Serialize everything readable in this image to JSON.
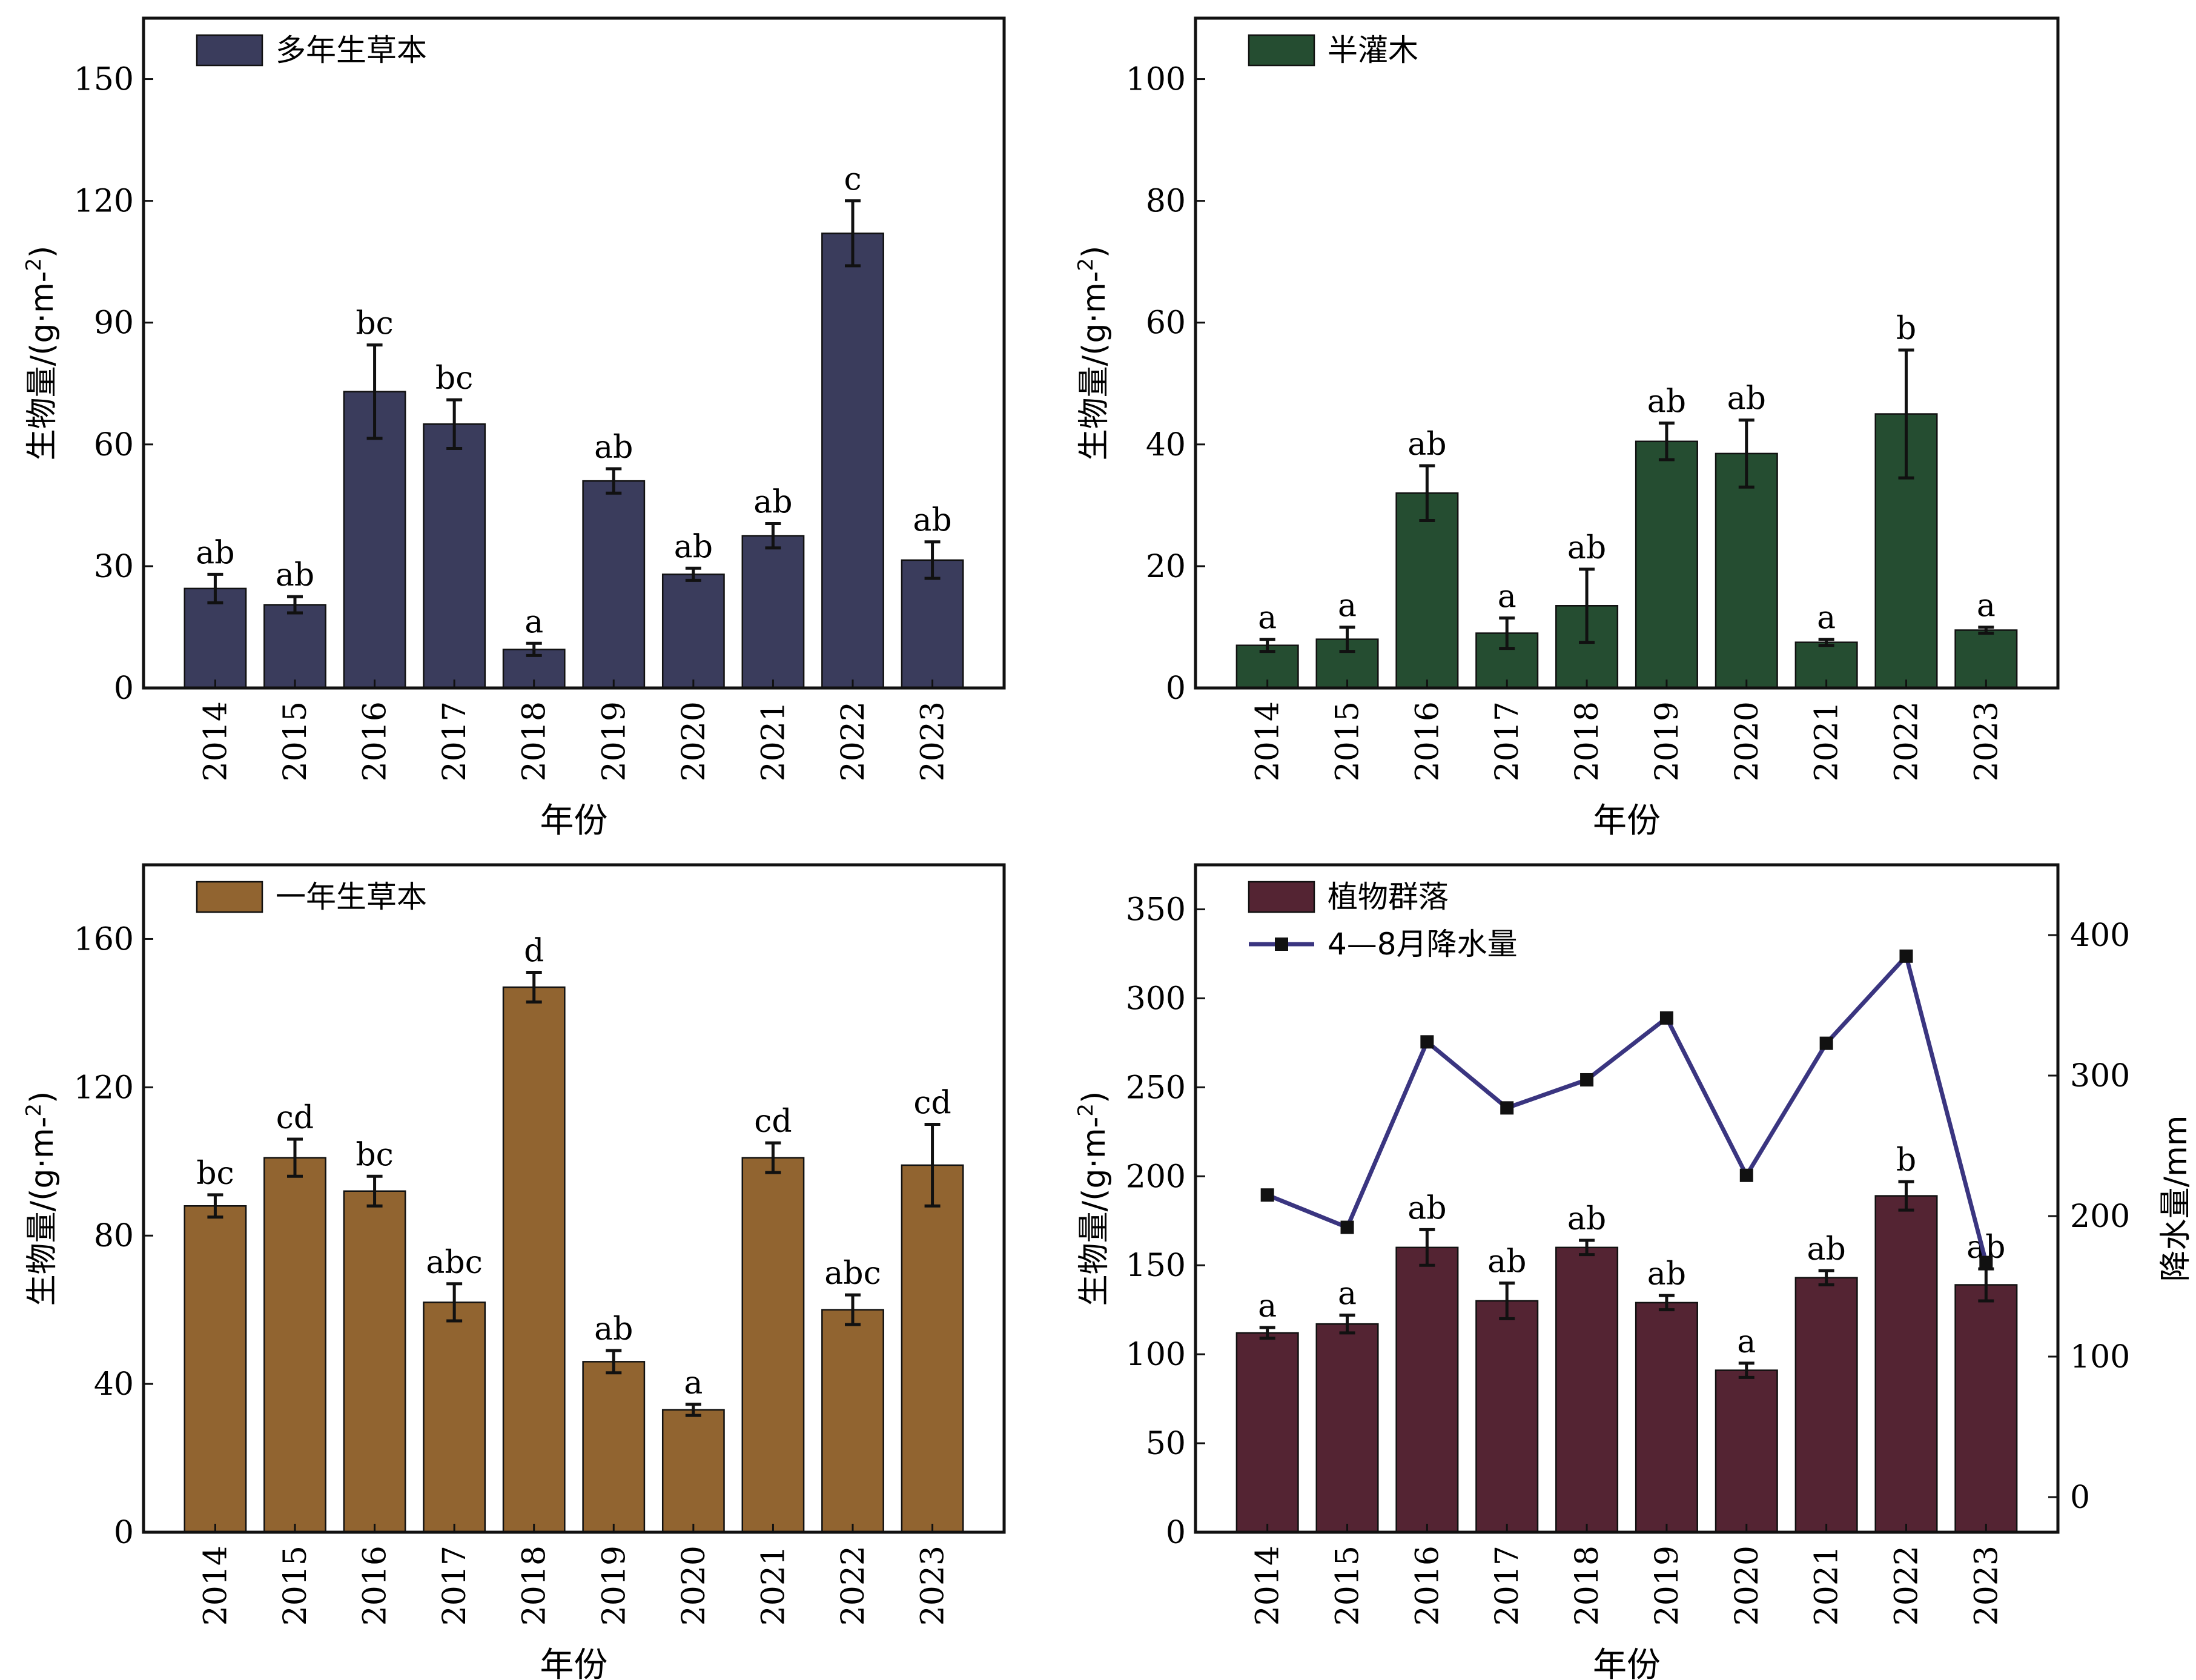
{
  "chart_data": [
    {
      "type": "bar",
      "legend_location": "top-left",
      "categories": [
        "2014",
        "2015",
        "2016",
        "2017",
        "2018",
        "2019",
        "2020",
        "2021",
        "2022",
        "2023"
      ],
      "series": [
        {
          "name": "多年生草本",
          "color": "#3a3c5c",
          "values": [
            24.5,
            20.5,
            73,
            65,
            9.5,
            51,
            28,
            37.5,
            112,
            31.5
          ],
          "errors": [
            3.5,
            2,
            11.5,
            6,
            1.5,
            3,
            1.5,
            3,
            8,
            4.5
          ]
        }
      ],
      "letters": [
        "ab",
        "ab",
        "bc",
        "bc",
        "a",
        "ab",
        "ab",
        "ab",
        "c",
        "ab"
      ],
      "xlabel": "年份",
      "ylabel": "生物量/(g·m⁻²)",
      "ylim": [
        0,
        165
      ],
      "yticks": [
        0,
        30,
        60,
        90,
        120,
        150
      ],
      "grid": false
    },
    {
      "type": "bar",
      "legend_location": "top-left",
      "categories": [
        "2014",
        "2015",
        "2016",
        "2017",
        "2018",
        "2019",
        "2020",
        "2021",
        "2022",
        "2023"
      ],
      "series": [
        {
          "name": "半灌木",
          "color": "#254d31",
          "values": [
            7,
            8,
            32,
            9,
            13.5,
            40.5,
            38.5,
            7.5,
            45,
            9.5
          ],
          "errors": [
            1,
            2,
            4.5,
            2.5,
            6,
            3,
            5.5,
            0.5,
            10.5,
            0.5
          ]
        }
      ],
      "letters": [
        "a",
        "a",
        "ab",
        "a",
        "ab",
        "ab",
        "ab",
        "a",
        "b",
        "a"
      ],
      "xlabel": "年份",
      "ylabel": "生物量/(g·m⁻²)",
      "ylim": [
        0,
        110
      ],
      "yticks": [
        0,
        20,
        40,
        60,
        80,
        100
      ],
      "grid": false
    },
    {
      "type": "bar",
      "legend_location": "top-left",
      "categories": [
        "2014",
        "2015",
        "2016",
        "2017",
        "2018",
        "2019",
        "2020",
        "2021",
        "2022",
        "2023"
      ],
      "series": [
        {
          "name": "一年生草本",
          "color": "#916430",
          "values": [
            88,
            101,
            92,
            62,
            147,
            46,
            33,
            101,
            60,
            99
          ],
          "errors": [
            3,
            5,
            4,
            5,
            4,
            3,
            1.5,
            4,
            4,
            11
          ]
        }
      ],
      "letters": [
        "bc",
        "cd",
        "bc",
        "abc",
        "d",
        "ab",
        "a",
        "cd",
        "abc",
        "cd"
      ],
      "xlabel": "年份",
      "ylabel": "生物量/(g·m⁻²)",
      "ylim": [
        0,
        180
      ],
      "yticks": [
        0,
        40,
        80,
        120,
        160
      ],
      "grid": false
    },
    {
      "type": "bar",
      "legend_location": "top-left",
      "categories": [
        "2014",
        "2015",
        "2016",
        "2017",
        "2018",
        "2019",
        "2020",
        "2021",
        "2022",
        "2023"
      ],
      "series": [
        {
          "name": "植物群落",
          "color": "#542433",
          "values": [
            112,
            117,
            160,
            130,
            160,
            129,
            91,
            143,
            189,
            139
          ],
          "errors": [
            3,
            5,
            10,
            10,
            4,
            4,
            4,
            4,
            8,
            9
          ]
        },
        {
          "name": "4—8月降水量",
          "type": "line",
          "axis": "right",
          "color": "#3a3580",
          "values": [
            215,
            192,
            324,
            277,
            297,
            341,
            229,
            323,
            385,
            167
          ]
        }
      ],
      "letters": [
        "a",
        "a",
        "ab",
        "ab",
        "ab",
        "ab",
        "a",
        "ab",
        "b",
        "ab"
      ],
      "xlabel": "年份",
      "ylabel": "生物量/(g·m⁻²)",
      "ylabel_right": "降水量/mm",
      "ylim": [
        0,
        375
      ],
      "yticks": [
        0,
        50,
        100,
        150,
        200,
        250,
        300,
        350
      ],
      "ylim_right": [
        -25,
        450
      ],
      "yticks_right": [
        0,
        100,
        200,
        300,
        400
      ],
      "grid": false
    }
  ]
}
